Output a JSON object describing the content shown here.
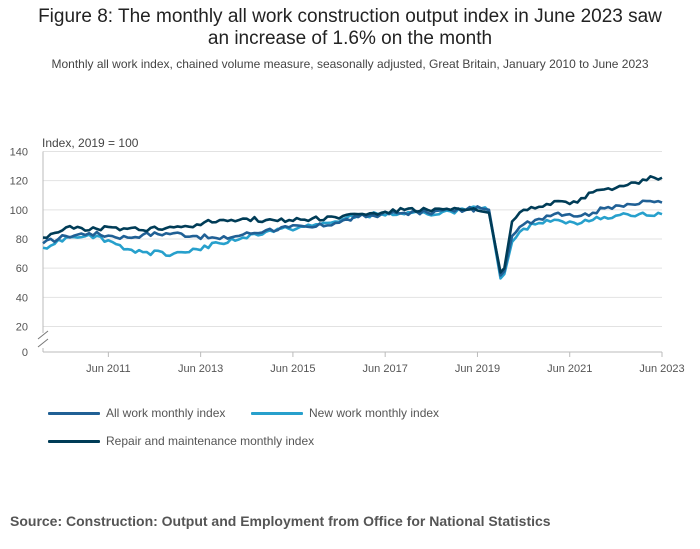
{
  "title_line1": "Figure 8: The monthly all work construction output index in June 2023 saw",
  "title_line2": "an increase of 1.6% on the month",
  "subtitle": "Monthly all work index, chained volume measure, seasonally adjusted, Great Britain, January 2010 to June 2023",
  "source": "Source: Construction: Output and Employment from Office for National Statistics",
  "chart_data": {
    "type": "line",
    "ylabel": "Index, 2019 = 100",
    "ylim": [
      0,
      140
    ],
    "yticks": [
      0,
      20,
      40,
      60,
      80,
      100,
      120,
      140
    ],
    "axis_break": "between 0 and 20",
    "x_start": "Jan 2010",
    "x_end": "Jun 2023",
    "x_ticks": [
      {
        "label": "Jun 2011",
        "index": 17
      },
      {
        "label": "Jun 2013",
        "index": 41
      },
      {
        "label": "Jun 2015",
        "index": 65
      },
      {
        "label": "Jun 2017",
        "index": 89
      },
      {
        "label": "Jun 2019",
        "index": 113
      },
      {
        "label": "Jun 2021",
        "index": 137
      },
      {
        "label": "Jun 2023",
        "index": 161
      }
    ],
    "series": [
      {
        "name": "All work monthly index",
        "color": "#206095",
        "anchors": [
          [
            0,
            77
          ],
          [
            6,
            82
          ],
          [
            12,
            84
          ],
          [
            18,
            82
          ],
          [
            22,
            81
          ],
          [
            26,
            83
          ],
          [
            34,
            84
          ],
          [
            40,
            82
          ],
          [
            46,
            80
          ],
          [
            52,
            83
          ],
          [
            58,
            86
          ],
          [
            64,
            88
          ],
          [
            70,
            88
          ],
          [
            76,
            91
          ],
          [
            82,
            95
          ],
          [
            88,
            97
          ],
          [
            94,
            98
          ],
          [
            100,
            98
          ],
          [
            106,
            100
          ],
          [
            110,
            100
          ],
          [
            114,
            101
          ],
          [
            116,
            100
          ],
          [
            119,
            55
          ],
          [
            120,
            58
          ],
          [
            122,
            82
          ],
          [
            125,
            90
          ],
          [
            128,
            93
          ],
          [
            131,
            96
          ],
          [
            134,
            98
          ],
          [
            137,
            97
          ],
          [
            140,
            96
          ],
          [
            143,
            98
          ],
          [
            146,
            101
          ],
          [
            149,
            103
          ],
          [
            152,
            104
          ],
          [
            155,
            104
          ],
          [
            158,
            106
          ],
          [
            161,
            105
          ]
        ]
      },
      {
        "name": "New work monthly index",
        "color": "#27a0cc",
        "anchors": [
          [
            0,
            74
          ],
          [
            6,
            81
          ],
          [
            12,
            83
          ],
          [
            18,
            78
          ],
          [
            22,
            73
          ],
          [
            26,
            71
          ],
          [
            34,
            70
          ],
          [
            40,
            73
          ],
          [
            46,
            77
          ],
          [
            52,
            81
          ],
          [
            58,
            85
          ],
          [
            64,
            87
          ],
          [
            70,
            89
          ],
          [
            76,
            92
          ],
          [
            82,
            96
          ],
          [
            88,
            97
          ],
          [
            94,
            97
          ],
          [
            100,
            97
          ],
          [
            106,
            99
          ],
          [
            110,
            100
          ],
          [
            114,
            101
          ],
          [
            116,
            99
          ],
          [
            119,
            53
          ],
          [
            120,
            56
          ],
          [
            122,
            78
          ],
          [
            125,
            87
          ],
          [
            128,
            90
          ],
          [
            131,
            93
          ],
          [
            134,
            93
          ],
          [
            137,
            92
          ],
          [
            140,
            91
          ],
          [
            143,
            93
          ],
          [
            146,
            95
          ],
          [
            149,
            96
          ],
          [
            152,
            97
          ],
          [
            155,
            97
          ],
          [
            158,
            96
          ],
          [
            161,
            97
          ]
        ]
      },
      {
        "name": "Repair and maintenance monthly index",
        "color": "#003c57",
        "anchors": [
          [
            0,
            81
          ],
          [
            6,
            88
          ],
          [
            12,
            86
          ],
          [
            18,
            88
          ],
          [
            22,
            87
          ],
          [
            26,
            86
          ],
          [
            34,
            88
          ],
          [
            40,
            90
          ],
          [
            46,
            93
          ],
          [
            52,
            94
          ],
          [
            58,
            93
          ],
          [
            64,
            93
          ],
          [
            70,
            94
          ],
          [
            76,
            95
          ],
          [
            82,
            97
          ],
          [
            88,
            98
          ],
          [
            94,
            100
          ],
          [
            100,
            100
          ],
          [
            106,
            100
          ],
          [
            110,
            100
          ],
          [
            114,
            99
          ],
          [
            116,
            98
          ],
          [
            119,
            57
          ],
          [
            120,
            60
          ],
          [
            122,
            92
          ],
          [
            125,
            100
          ],
          [
            128,
            101
          ],
          [
            131,
            104
          ],
          [
            134,
            106
          ],
          [
            137,
            104
          ],
          [
            140,
            108
          ],
          [
            143,
            112
          ],
          [
            146,
            114
          ],
          [
            149,
            115
          ],
          [
            152,
            117
          ],
          [
            155,
            118
          ],
          [
            158,
            123
          ],
          [
            161,
            122
          ]
        ]
      }
    ]
  }
}
